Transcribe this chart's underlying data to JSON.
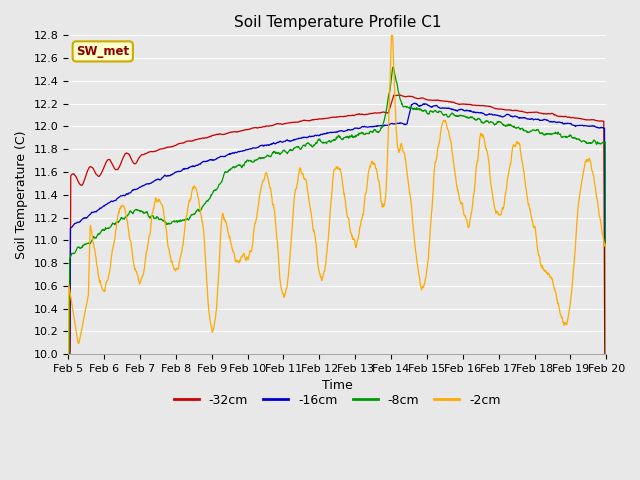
{
  "title": "Soil Temperature Profile C1",
  "xlabel": "Time",
  "ylabel": "Soil Temperature (C)",
  "ylim": [
    10.0,
    12.8
  ],
  "yticks": [
    10.0,
    10.2,
    10.4,
    10.6,
    10.8,
    11.0,
    11.2,
    11.4,
    11.6,
    11.8,
    12.0,
    12.2,
    12.4,
    12.6,
    12.8
  ],
  "xtick_labels": [
    "Feb 5",
    "Feb 6",
    "Feb 7",
    "Feb 8",
    "Feb 9",
    "Feb 10",
    "Feb 11",
    "Feb 12",
    "Feb 13",
    "Feb 14",
    "Feb 15",
    "Feb 16",
    "Feb 17",
    "Feb 18",
    "Feb 19",
    "Feb 20"
  ],
  "colors": {
    "-32cm": "#cc0000",
    "-16cm": "#0000cc",
    "-8cm": "#009900",
    "-2cm": "#ffaa00"
  },
  "legend_label": "SW_met",
  "legend_bg": "#ffffcc",
  "legend_border": "#ccaa00",
  "background_color": "#e8e8e8",
  "grid_color": "#ffffff",
  "title_fontsize": 11,
  "axis_fontsize": 8,
  "label_fontsize": 9
}
